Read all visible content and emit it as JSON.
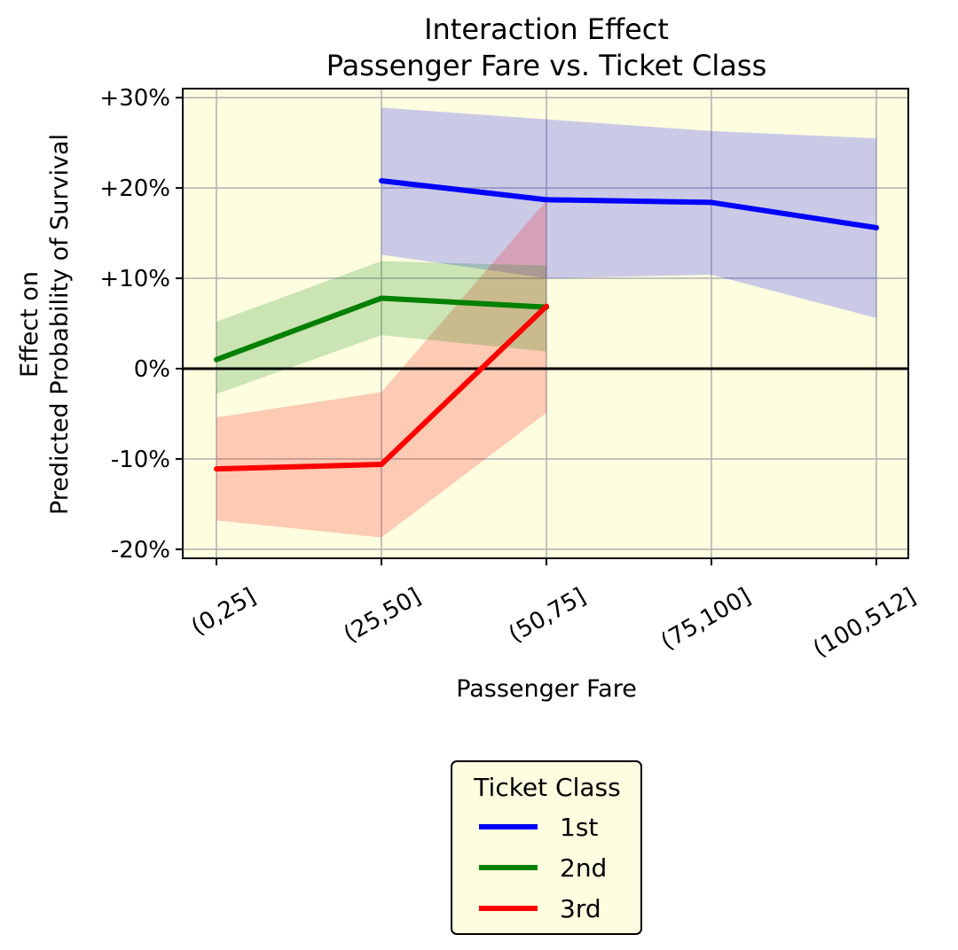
{
  "chart_data": {
    "type": "line",
    "title": "Interaction Effect",
    "subtitle": "Passenger Fare vs. Ticket Class",
    "xlabel": "Passenger Fare",
    "ylabel_line1": "Effect on",
    "ylabel_line2": "Predicted Probability of Survival",
    "categories": [
      "(0,25]",
      "(25,50]",
      "(50,75]",
      "(75,100]",
      "(100,512]"
    ],
    "yticks": [
      -20,
      -10,
      0,
      10,
      20,
      30
    ],
    "ytick_labels": [
      "-20%",
      "-10%",
      "0%",
      "+10%",
      "+20%",
      "+30%"
    ],
    "ylim": [
      -21,
      31
    ],
    "grid": true,
    "reference_line": 0,
    "legend": {
      "title": "Ticket Class",
      "position": "below"
    },
    "series": [
      {
        "name": "1st",
        "color": "#0000ff",
        "values": [
          null,
          20.8,
          18.7,
          18.4,
          15.6
        ],
        "lower": [
          null,
          12.6,
          10.0,
          10.4,
          5.6
        ],
        "upper": [
          null,
          28.9,
          27.6,
          26.3,
          25.5
        ]
      },
      {
        "name": "2nd",
        "color": "#008000",
        "values": [
          1.0,
          7.8,
          6.8,
          null,
          null
        ],
        "lower": [
          -2.8,
          3.7,
          1.9,
          null,
          null
        ],
        "upper": [
          5.2,
          11.9,
          11.4,
          null,
          null
        ]
      },
      {
        "name": "3rd",
        "color": "#ff0000",
        "values": [
          -11.1,
          -10.6,
          6.9,
          null,
          null
        ],
        "lower": [
          -16.8,
          -18.7,
          -4.9,
          null,
          null
        ],
        "upper": [
          -5.4,
          -2.6,
          18.6,
          null,
          null
        ]
      }
    ]
  }
}
